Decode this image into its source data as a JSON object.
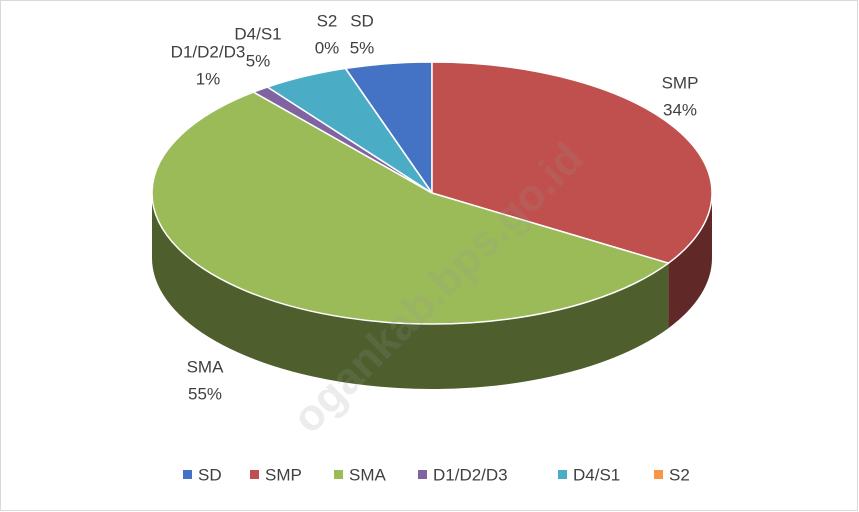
{
  "chart_data": {
    "type": "pie",
    "categories": [
      "SD",
      "SMP",
      "SMA",
      "D1/D2/D3",
      "D4/S1",
      "S2"
    ],
    "values": [
      5,
      34,
      55,
      1,
      5,
      0
    ],
    "value_labels": [
      "5%",
      "34%",
      "55%",
      "1%",
      "5%",
      "0%"
    ],
    "colors": [
      "#4472c4",
      "#c0504d",
      "#9bbb59",
      "#8064a2",
      "#4bacc6",
      "#f79646"
    ],
    "legend": "bottom",
    "watermark": "ogankab.bps.go.id"
  }
}
